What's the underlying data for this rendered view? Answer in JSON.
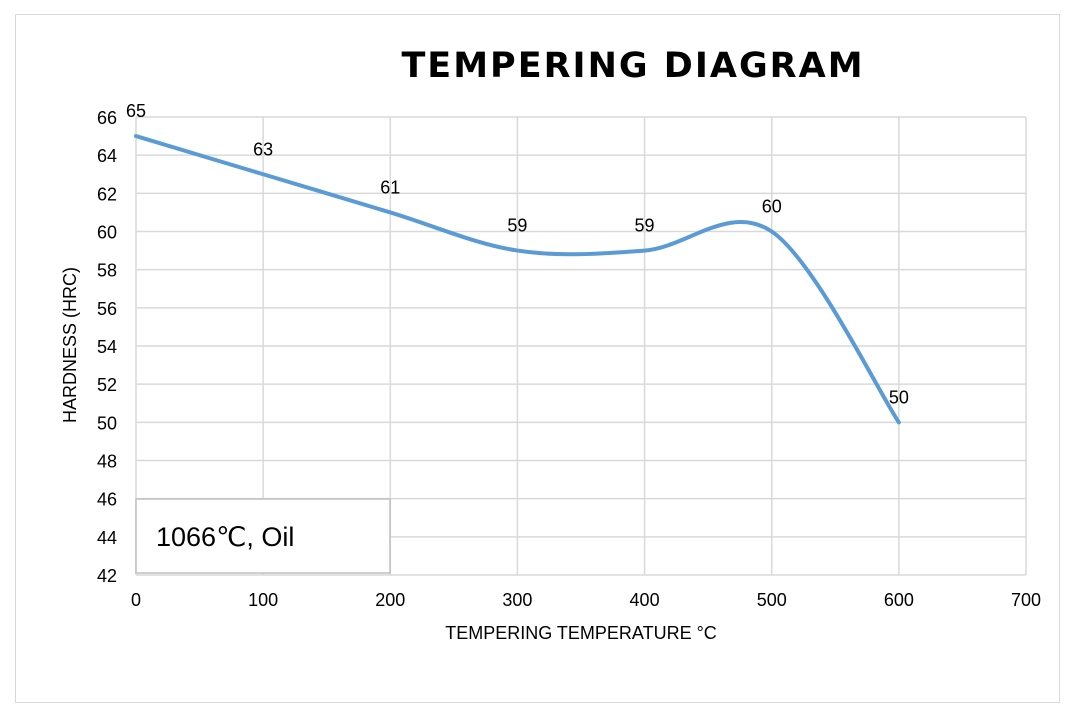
{
  "chart_data": {
    "type": "line",
    "title": "TEMPERING DIAGRAM",
    "xlabel": "TEMPERING TEMPERATURE °C",
    "ylabel": "HARDNESS (HRC)",
    "xlim": [
      0,
      700
    ],
    "ylim": [
      42,
      66
    ],
    "xticks": [
      0,
      100,
      200,
      300,
      400,
      500,
      600,
      700
    ],
    "yticks": [
      42,
      44,
      46,
      48,
      50,
      52,
      54,
      56,
      58,
      60,
      62,
      64,
      66
    ],
    "grid": true,
    "smooth": true,
    "series": [
      {
        "x": [
          0,
          100,
          200,
          300,
          400,
          500,
          600
        ],
        "values": [
          65,
          63,
          61,
          59,
          59,
          60,
          50
        ],
        "labels": [
          "65",
          "63",
          "61",
          "59",
          "59",
          "60",
          "50"
        ],
        "color": "#5b9bd5"
      }
    ],
    "annotation": "1066℃, Oil"
  }
}
